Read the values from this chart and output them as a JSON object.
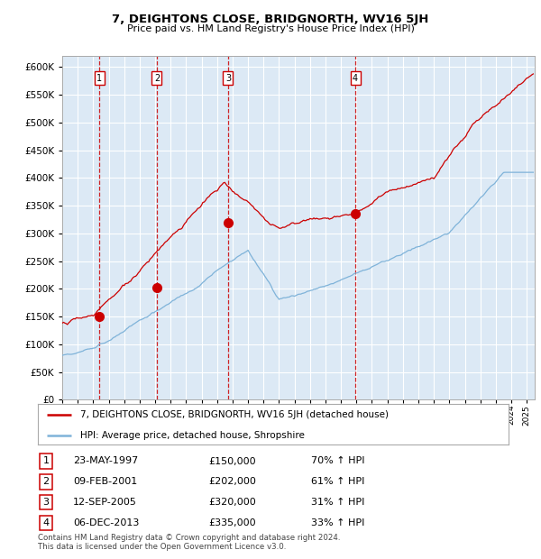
{
  "title": "7, DEIGHTONS CLOSE, BRIDGNORTH, WV16 5JH",
  "subtitle": "Price paid vs. HM Land Registry's House Price Index (HPI)",
  "plot_bg_color": "#dce9f5",
  "grid_color": "#ffffff",
  "sale_color": "#cc0000",
  "hpi_color": "#7fb3d9",
  "ylim": [
    0,
    620000
  ],
  "yticks": [
    0,
    50000,
    100000,
    150000,
    200000,
    250000,
    300000,
    350000,
    400000,
    450000,
    500000,
    550000,
    600000
  ],
  "xlim_start": 1995.0,
  "xlim_end": 2025.5,
  "sales": [
    {
      "date_num": 1997.39,
      "price": 150000,
      "label": "1"
    },
    {
      "date_num": 2001.11,
      "price": 202000,
      "label": "2"
    },
    {
      "date_num": 2005.71,
      "price": 320000,
      "label": "3"
    },
    {
      "date_num": 2013.93,
      "price": 335000,
      "label": "4"
    }
  ],
  "legend_line1": "7, DEIGHTONS CLOSE, BRIDGNORTH, WV16 5JH (detached house)",
  "legend_line2": "HPI: Average price, detached house, Shropshire",
  "table_rows": [
    {
      "num": "1",
      "date": "23-MAY-1997",
      "price": "£150,000",
      "change": "70% ↑ HPI"
    },
    {
      "num": "2",
      "date": "09-FEB-2001",
      "price": "£202,000",
      "change": "61% ↑ HPI"
    },
    {
      "num": "3",
      "date": "12-SEP-2005",
      "price": "£320,000",
      "change": "31% ↑ HPI"
    },
    {
      "num": "4",
      "date": "06-DEC-2013",
      "price": "£335,000",
      "change": "33% ↑ HPI"
    }
  ],
  "footnote1": "Contains HM Land Registry data © Crown copyright and database right 2024.",
  "footnote2": "This data is licensed under the Open Government Licence v3.0."
}
